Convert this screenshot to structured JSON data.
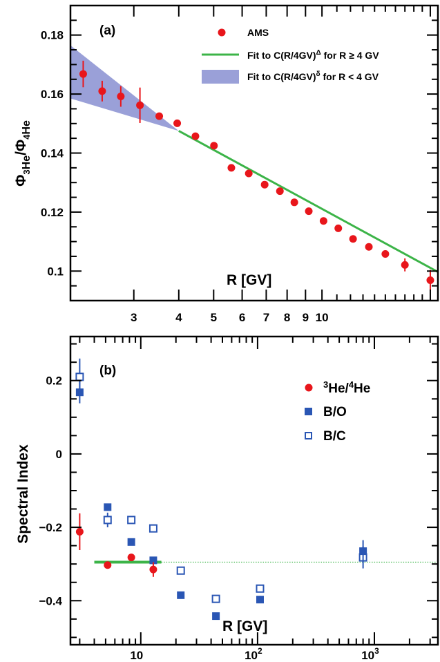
{
  "chart_data": [
    {
      "type": "scatter",
      "panel_label": "(a)",
      "xlabel": "R [GV]",
      "ylabel_main": "Φ",
      "ylabel_sub1": "3",
      "ylabel_sub2": "He",
      "ylabel_sep": "/Φ",
      "ylabel_sub3": "4",
      "ylabel_sub4": "He",
      "xscale": "log",
      "xlim": [
        2.0,
        21.0
      ],
      "ylim": [
        0.09,
        0.19
      ],
      "xticks": [
        3,
        4,
        5,
        6,
        7,
        8,
        9,
        10
      ],
      "xtick_labels": [
        "3",
        "4",
        "5",
        "6",
        "7",
        "8",
        "9",
        "10"
      ],
      "yticks": [
        0.1,
        0.12,
        0.14,
        0.16,
        0.18
      ],
      "ytick_labels": [
        "0.1",
        "0.12",
        "0.14",
        "0.16",
        "0.18"
      ],
      "colors": {
        "ams": "#e8161b",
        "fit_line": "#3cb448",
        "fit_band": "#9aa0d8"
      },
      "legend": {
        "position": "top-right",
        "ams": "AMS",
        "fit_line": "Fit to C(R/4GV)^Δ for R ≥ 4 GV",
        "fit_line_main": "Fit to C(R/4GV)",
        "fit_line_sup": "Δ",
        "fit_line_tail": " for R ≥ 4 GV",
        "fit_band": "Fit to C(R/4GV)^δ for R < 4 GV",
        "fit_band_main": "Fit to C(R/4GV)",
        "fit_band_sup": "δ",
        "fit_band_tail": " for R < 4 GV"
      },
      "series": [
        {
          "name": "AMS",
          "points": [
            {
              "x": 2.17,
              "y": 0.1668,
              "err": 0.0045
            },
            {
              "x": 2.45,
              "y": 0.161,
              "err": 0.0035
            },
            {
              "x": 2.76,
              "y": 0.1592,
              "err": 0.0035
            },
            {
              "x": 3.12,
              "y": 0.1562,
              "err": 0.006
            },
            {
              "x": 3.53,
              "y": 0.1525,
              "err": 0.001
            },
            {
              "x": 3.96,
              "y": 0.1501,
              "err": 0.0008
            },
            {
              "x": 4.45,
              "y": 0.1457,
              "err": 0.0008
            },
            {
              "x": 5.01,
              "y": 0.1425,
              "err": 0.0008
            },
            {
              "x": 5.6,
              "y": 0.135,
              "err": 0.0008
            },
            {
              "x": 6.26,
              "y": 0.1331,
              "err": 0.0008
            },
            {
              "x": 6.93,
              "y": 0.1293,
              "err": 0.0008
            },
            {
              "x": 7.64,
              "y": 0.1271,
              "err": 0.0008
            },
            {
              "x": 8.38,
              "y": 0.1233,
              "err": 0.0008
            },
            {
              "x": 9.19,
              "y": 0.1203,
              "err": 0.0008
            },
            {
              "x": 10.1,
              "y": 0.117,
              "err": 0.0008
            },
            {
              "x": 11.1,
              "y": 0.1145,
              "err": 0.0008
            },
            {
              "x": 12.2,
              "y": 0.1109,
              "err": 0.001
            },
            {
              "x": 13.5,
              "y": 0.1082,
              "err": 0.001
            },
            {
              "x": 15.0,
              "y": 0.1058,
              "err": 0.0012
            },
            {
              "x": 17.0,
              "y": 0.1021,
              "err": 0.0022
            },
            {
              "x": 20.0,
              "y": 0.0969,
              "err": 0.0035
            }
          ]
        }
      ],
      "fit_line": {
        "x": [
          4.0,
          21.0
        ],
        "y": [
          0.1475,
          0.0997
        ]
      },
      "fit_band": {
        "x": [
          2.0,
          4.0
        ],
        "y_low": [
          0.1585,
          0.1475
        ],
        "y_high": [
          0.1765,
          0.1475
        ]
      }
    },
    {
      "type": "scatter",
      "panel_label": "(b)",
      "xlabel": "R [GV]",
      "ylabel": "Spectral Index",
      "xscale": "log",
      "xlim": [
        2.5,
        3500
      ],
      "ylim": [
        -0.52,
        0.32
      ],
      "xtick_labels": [
        "10",
        "10",
        "10"
      ],
      "xtick_exponents": [
        "",
        "2",
        "3"
      ],
      "xticks": [
        10,
        100,
        1000
      ],
      "yticks": [
        -0.4,
        -0.2,
        0,
        0.2
      ],
      "ytick_labels": [
        "−0.4",
        "−0.2",
        "0",
        "0.2"
      ],
      "colors": {
        "he": "#e8161b",
        "bo": "#2a56b4",
        "bc": "#2a56b4",
        "he_fit": "#3cb448",
        "ref_line": "#3cb448"
      },
      "legend": {
        "position": "top-right",
        "he_sup1": "3",
        "he_main1": "He/",
        "he_sup2": "4",
        "he_main2": "He",
        "bo": "B/O",
        "bc": "B/C"
      },
      "series": [
        {
          "name": "3He/4He",
          "points": [
            {
              "x": 3.0,
              "y": -0.212,
              "err": 0.05
            },
            {
              "x": 5.2,
              "y": -0.303,
              "err": 0.006
            },
            {
              "x": 8.3,
              "y": -0.282,
              "err": 0.008
            },
            {
              "x": 12.8,
              "y": -0.315,
              "err": 0.02
            }
          ]
        },
        {
          "name": "B/O",
          "points": [
            {
              "x": 3.0,
              "y": 0.168,
              "err": 0.03
            },
            {
              "x": 5.2,
              "y": -0.145,
              "err": 0.01
            },
            {
              "x": 8.3,
              "y": -0.24,
              "err": 0.006
            },
            {
              "x": 12.8,
              "y": -0.29,
              "err": 0.006
            },
            {
              "x": 22.0,
              "y": -0.385,
              "err": 0.006
            },
            {
              "x": 44.0,
              "y": -0.442,
              "err": 0.006
            },
            {
              "x": 105,
              "y": -0.397,
              "err": 0.01
            },
            {
              "x": 800,
              "y": -0.265,
              "err": 0.03
            }
          ]
        },
        {
          "name": "B/C",
          "points": [
            {
              "x": 3.0,
              "y": 0.21,
              "err": 0.05
            },
            {
              "x": 5.2,
              "y": -0.18,
              "err": 0.02
            },
            {
              "x": 8.3,
              "y": -0.18,
              "err": 0.006
            },
            {
              "x": 12.8,
              "y": -0.203,
              "err": 0.006
            },
            {
              "x": 22.0,
              "y": -0.318,
              "err": 0.006
            },
            {
              "x": 44.0,
              "y": -0.395,
              "err": 0.006
            },
            {
              "x": 105,
              "y": -0.367,
              "err": 0.01
            },
            {
              "x": 800,
              "y": -0.282,
              "err": 0.03
            }
          ]
        }
      ],
      "he_fit": {
        "x": [
          4.0,
          15.0
        ],
        "y": -0.295
      },
      "ref_line": {
        "x": [
          15.0,
          3500
        ],
        "y": -0.295
      }
    }
  ]
}
